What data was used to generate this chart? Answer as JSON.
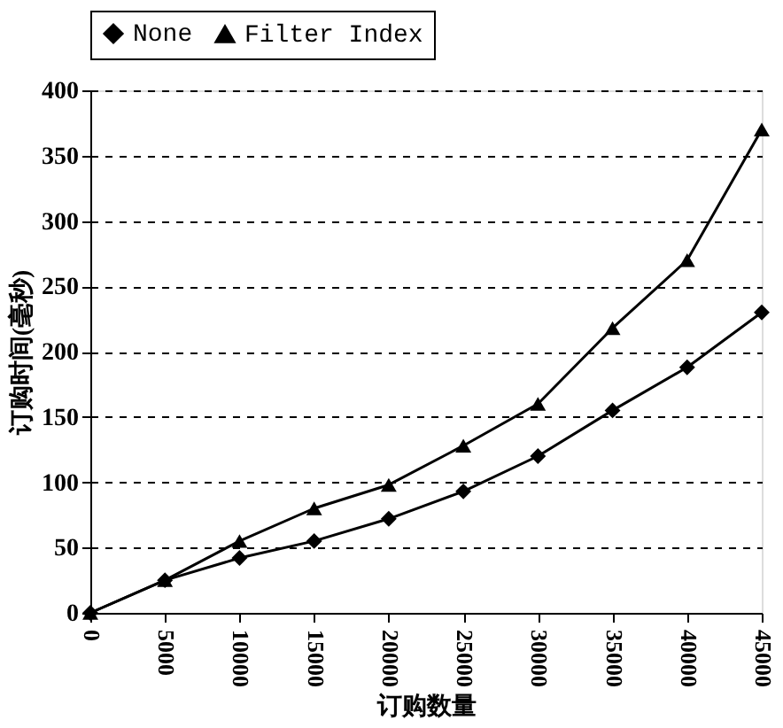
{
  "chart_data": {
    "type": "line",
    "xlabel": "订购数量",
    "ylabel": "订购时间(毫秒)",
    "x": [
      0,
      5000,
      10000,
      15000,
      20000,
      25000,
      30000,
      35000,
      40000,
      45000
    ],
    "series": [
      {
        "name": "None",
        "color": "#000000",
        "marker": "diamond",
        "values": [
          0,
          25,
          42,
          55,
          72,
          93,
          120,
          155,
          188,
          230
        ]
      },
      {
        "name": "Filter Index",
        "color": "#000000",
        "marker": "triangle",
        "values": [
          0,
          25,
          55,
          80,
          98,
          128,
          160,
          218,
          270,
          370
        ]
      }
    ],
    "xlim": [
      0,
      45000
    ],
    "xticks": [
      0,
      5000,
      10000,
      15000,
      20000,
      25000,
      30000,
      35000,
      40000,
      45000
    ],
    "ylim": [
      0,
      400
    ],
    "yticks": [
      0,
      50,
      100,
      150,
      200,
      250,
      300,
      350,
      400
    ],
    "grid": "y",
    "legend": "top",
    "line_style": "solid"
  }
}
